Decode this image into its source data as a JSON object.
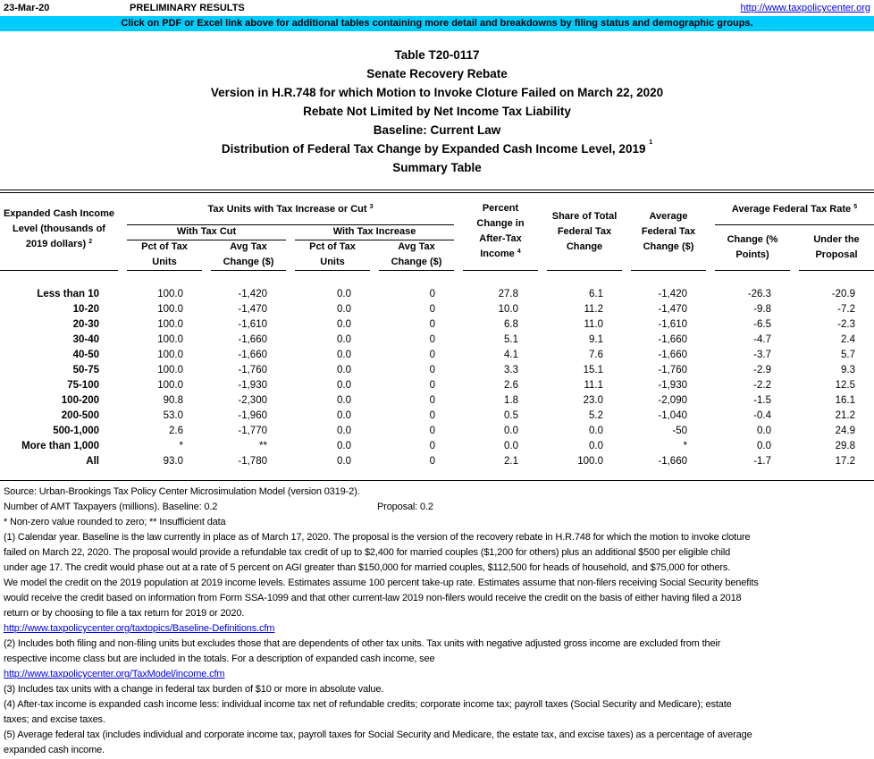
{
  "header": {
    "date": "23-Mar-20",
    "status": "PRELIMINARY RESULTS",
    "site_link": "http://www.taxpolicycenter.org",
    "banner": "Click on PDF or Excel link above for additional tables containing more detail and breakdowns by filing status and demographic groups."
  },
  "titles": [
    "Table T20-0117",
    "Senate Recovery Rebate",
    "Version in H.R.748 for which Motion to Invoke Cloture Failed on March 22, 2020",
    "Rebate Not Limited by Net Income Tax Liability",
    "Baseline: Current Law",
    "Distribution of Federal Tax Change by Expanded Cash Income Level, 2019",
    "Summary Table"
  ],
  "title_footnote": "1",
  "columns": {
    "income_level": [
      "Expanded Cash Income",
      "Level (thousands of",
      "2019 dollars)"
    ],
    "income_level_note": "2",
    "group_tax_units": "Tax Units with Tax Increase or Cut",
    "group_tax_units_note": "3",
    "sub_cut": "With Tax Cut",
    "sub_increase": "With Tax Increase",
    "pct_units": [
      "Pct of Tax",
      "Units"
    ],
    "avg_change": [
      "Avg Tax",
      "Change ($)"
    ],
    "pct_change_income": [
      "Percent",
      "Change in",
      "After-Tax",
      "Income"
    ],
    "pct_change_income_note": "4",
    "share_total": [
      "Share of Total",
      "Federal Tax",
      "Change"
    ],
    "avg_fed_change": [
      "Average",
      "Federal Tax",
      "Change ($)"
    ],
    "group_rate": "Average Federal Tax Rate",
    "group_rate_note": "5",
    "rate_change": [
      "Change (%",
      "Points)"
    ],
    "rate_under": [
      "Under the",
      "Proposal"
    ]
  },
  "rows": [
    [
      "Less than 10",
      "100.0",
      "-1,420",
      "0.0",
      "0",
      "27.8",
      "6.1",
      "-1,420",
      "-26.3",
      "-20.9"
    ],
    [
      "10-20",
      "100.0",
      "-1,470",
      "0.0",
      "0",
      "10.0",
      "11.2",
      "-1,470",
      "-9.8",
      "-7.2"
    ],
    [
      "20-30",
      "100.0",
      "-1,610",
      "0.0",
      "0",
      "6.8",
      "11.0",
      "-1,610",
      "-6.5",
      "-2.3"
    ],
    [
      "30-40",
      "100.0",
      "-1,660",
      "0.0",
      "0",
      "5.1",
      "9.1",
      "-1,660",
      "-4.7",
      "2.4"
    ],
    [
      "40-50",
      "100.0",
      "-1,660",
      "0.0",
      "0",
      "4.1",
      "7.6",
      "-1,660",
      "-3.7",
      "5.7"
    ],
    [
      "50-75",
      "100.0",
      "-1,760",
      "0.0",
      "0",
      "3.3",
      "15.1",
      "-1,760",
      "-2.9",
      "9.3"
    ],
    [
      "75-100",
      "100.0",
      "-1,930",
      "0.0",
      "0",
      "2.6",
      "11.1",
      "-1,930",
      "-2.2",
      "12.5"
    ],
    [
      "100-200",
      "90.8",
      "-2,300",
      "0.0",
      "0",
      "1.8",
      "23.0",
      "-2,090",
      "-1.5",
      "16.1"
    ],
    [
      "200-500",
      "53.0",
      "-1,960",
      "0.0",
      "0",
      "0.5",
      "5.2",
      "-1,040",
      "-0.4",
      "21.2"
    ],
    [
      "500-1,000",
      "2.6",
      "-1,770",
      "0.0",
      "0",
      "0.0",
      "0.0",
      "-50",
      "0.0",
      "24.9"
    ],
    [
      "More than 1,000",
      "*",
      "**",
      "0.0",
      "0",
      "0.0",
      "0.0",
      "*",
      "0.0",
      "29.8"
    ],
    [
      "All",
      "93.0",
      "-1,780",
      "0.0",
      "0",
      "2.1",
      "100.0",
      "-1,660",
      "-1.7",
      "17.2"
    ]
  ],
  "footer": {
    "source": "Source: Urban-Brookings Tax Policy Center Microsimulation Model (version 0319-2).",
    "amt_baseline": "Number of AMT Taxpayers (millions).  Baseline: 0.2",
    "amt_proposal": "Proposal: 0.2",
    "notes_key": "* Non-zero value rounded to zero; ** Insufficient data",
    "lines": [
      {
        "text": "(1) Calendar year. Baseline is the law currently in place as of March 17, 2020. The proposal is the version of the recovery rebate in H.R.748 for which the motion to invoke cloture"
      },
      {
        "text": "failed on March 22, 2020. The proposal would provide a refundable tax credit of up to $2,400 for married couples ($1,200 for others) plus an additional $500 per eligible child"
      },
      {
        "text": "under age 17.  The credit would phase out at a rate of 5 percent on AGI greater than $150,000 for married couples, $112,500 for heads of household, and $75,000 for others."
      },
      {
        "text": "We model the credit on the 2019 population at 2019 income levels. Estimates assume 100 percent take-up rate. Estimates assume that non-filers receiving Social Security benefits"
      },
      {
        "text": "would receive the credit based on information from Form SSA-1099 and that other current-law 2019 non-filers would receive the credit on the basis of either having filed a 2018"
      },
      {
        "text": "return or by choosing to file a tax return for 2019 or 2020."
      },
      {
        "text": "http://www.taxpolicycenter.org/taxtopics/Baseline-Definitions.cfm",
        "link": true
      },
      {
        "text": "(2) Includes both filing and non-filing units but excludes those that are dependents of other tax units. Tax units with negative adjusted gross income are excluded from their"
      },
      {
        "text": "respective income class but are included in the totals. For a description of expanded cash income, see"
      },
      {
        "text": "http://www.taxpolicycenter.org/TaxModel/income.cfm",
        "link": true
      },
      {
        "text": "(3) Includes tax units with a change in federal tax burden of $10 or more in absolute value."
      },
      {
        "text": "(4) After-tax income is expanded cash income less: individual income tax net of refundable credits; corporate income tax; payroll taxes (Social Security and Medicare); estate"
      },
      {
        "text": "taxes; and excise taxes."
      },
      {
        "text": "(5) Average federal tax (includes individual and corporate income tax, payroll taxes for Social Security and Medicare, the estate tax, and excise taxes) as a percentage of average"
      },
      {
        "text": "expanded cash income."
      }
    ]
  }
}
